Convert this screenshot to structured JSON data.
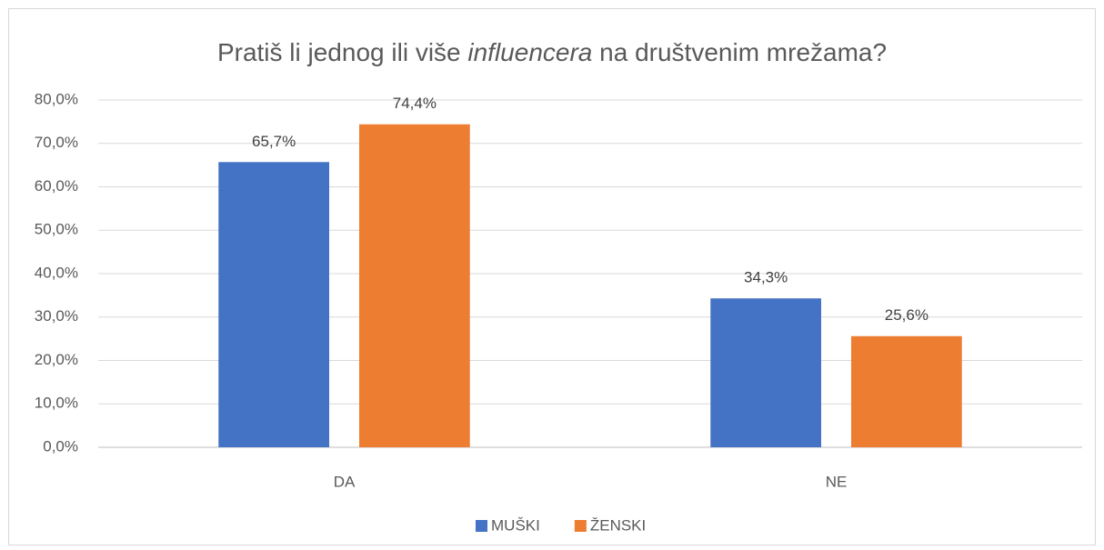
{
  "chart_data": {
    "type": "bar",
    "title": [
      "Pratiš li jednog ili više ",
      "influencera",
      " na društvenim mrežama?"
    ],
    "categories": [
      "DA",
      "NE"
    ],
    "series": [
      {
        "name": "MUŠKI",
        "color": "#4472c4",
        "values": [
          65.7,
          34.3
        ],
        "value_labels": [
          "65,7%",
          "34,3%"
        ]
      },
      {
        "name": "ŽENSKI",
        "color": "#ed7d31",
        "values": [
          74.4,
          25.6
        ],
        "value_labels": [
          "74,4%",
          "25,6%"
        ]
      }
    ],
    "ylim": [
      0,
      80
    ],
    "yticks": [
      {
        "value": 0,
        "label": "0,0%"
      },
      {
        "value": 10,
        "label": "10,0%"
      },
      {
        "value": 20,
        "label": "20,0%"
      },
      {
        "value": 30,
        "label": "30,0%"
      },
      {
        "value": 40,
        "label": "40,0%"
      },
      {
        "value": 50,
        "label": "50,0%"
      },
      {
        "value": 60,
        "label": "60,0%"
      },
      {
        "value": 70,
        "label": "70,0%"
      },
      {
        "value": 80,
        "label": "80,0%"
      }
    ],
    "grid": true,
    "legend": "bottom"
  }
}
